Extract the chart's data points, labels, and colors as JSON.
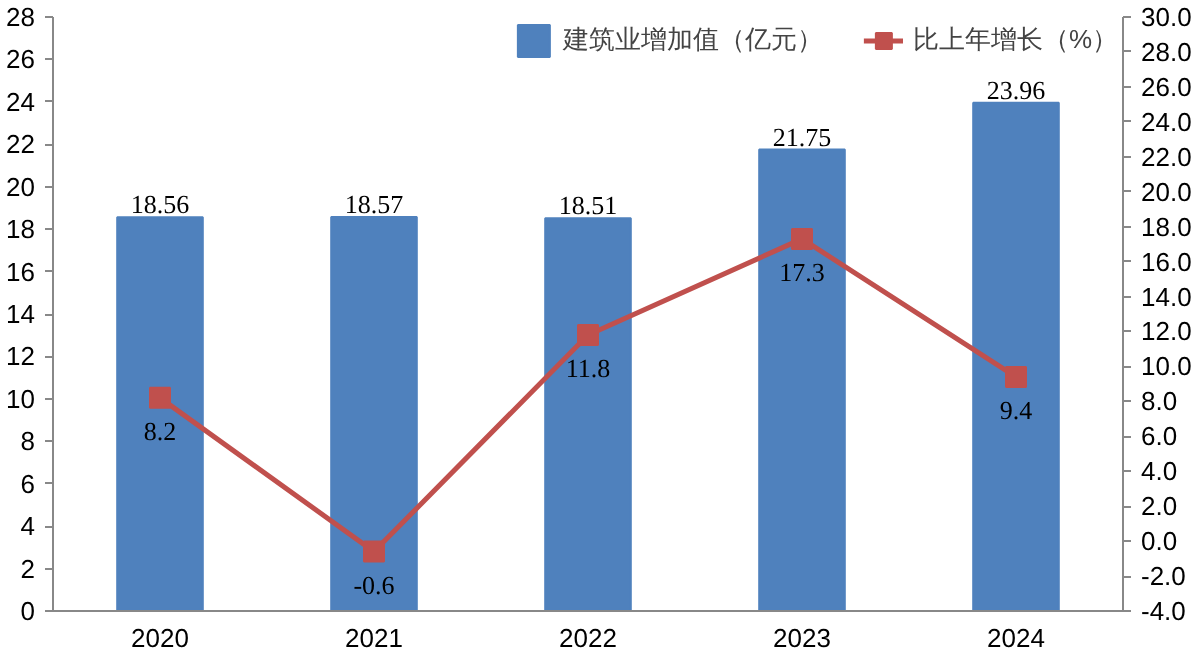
{
  "chart_data": {
    "type": "bar",
    "categories": [
      "2020",
      "2021",
      "2022",
      "2023",
      "2024"
    ],
    "series": [
      {
        "name": "建筑业增加值（亿元）",
        "color": "#4f81bd",
        "values": [
          18.56,
          18.57,
          18.51,
          21.75,
          23.96
        ]
      },
      {
        "name": "比上年增长（%）",
        "type": "line",
        "axis": "y2",
        "color": "#c0504d",
        "values": [
          8.2,
          -0.6,
          11.8,
          17.3,
          9.4
        ],
        "marker": "square"
      }
    ],
    "ylim": [
      0,
      28
    ],
    "yticks": [
      0,
      2,
      4,
      6,
      8,
      10,
      12,
      14,
      16,
      18,
      20,
      22,
      24,
      26,
      28
    ],
    "y2lim": [
      -4,
      30
    ],
    "y2ticks": [
      {
        "value": -4,
        "label": "-4.0"
      },
      {
        "value": -2,
        "label": "-2.0"
      },
      {
        "value": 0,
        "label": "0.0"
      },
      {
        "value": 2,
        "label": "2.0"
      },
      {
        "value": 4,
        "label": "4.0"
      },
      {
        "value": 6,
        "label": "6.0"
      },
      {
        "value": 8,
        "label": "8.0"
      },
      {
        "value": 10,
        "label": "10.0"
      },
      {
        "value": 12,
        "label": "12.0"
      },
      {
        "value": 14,
        "label": "14.0"
      },
      {
        "value": 16,
        "label": "16.0"
      },
      {
        "value": 18,
        "label": "18.0"
      },
      {
        "value": 20,
        "label": "20.0"
      },
      {
        "value": 22,
        "label": "22.0"
      },
      {
        "value": 24,
        "label": "24.0"
      },
      {
        "value": 26,
        "label": "26.0"
      },
      {
        "value": 28,
        "label": "28.0"
      },
      {
        "value": 30,
        "label": "30.0"
      }
    ],
    "data_labels": true,
    "legend": "top right",
    "grid": false
  }
}
